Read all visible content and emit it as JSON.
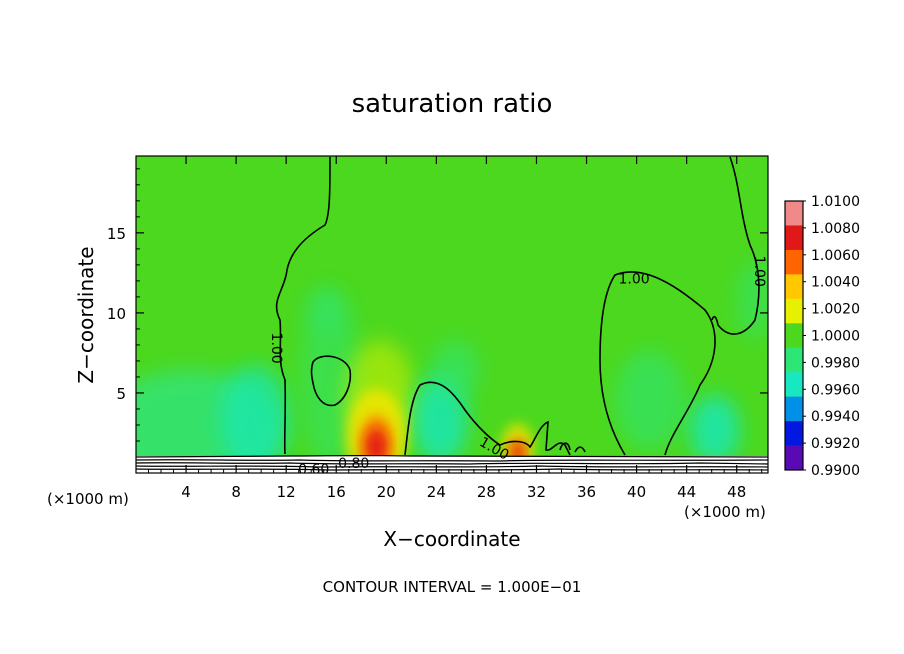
{
  "chart_data": {
    "type": "heatmap",
    "title": "saturation ratio",
    "xlabel": "X−coordinate",
    "ylabel": "Z−coordinate",
    "x_unit_left": "(×1000 m)",
    "x_unit_right": "(×1000 m)",
    "xlim": [
      0,
      50.5
    ],
    "ylim": [
      0,
      19.8
    ],
    "x_ticks": [
      4,
      8,
      12,
      16,
      20,
      24,
      28,
      32,
      36,
      40,
      44,
      48
    ],
    "y_ticks": [
      5,
      10,
      15
    ],
    "footer": "CONTOUR INTERVAL = 1.000E−01",
    "colorbar": {
      "labels": [
        "1.0100",
        "1.0080",
        "1.0060",
        "1.0040",
        "1.0020",
        "1.0000",
        "0.9980",
        "0.9960",
        "0.9940",
        "0.9920",
        "0.9900"
      ],
      "colors": [
        "#f08a8a",
        "#e01818",
        "#ff6400",
        "#ffc800",
        "#e6f000",
        "#4cd81e",
        "#2ee676",
        "#18e8c0",
        "#0090e8",
        "#0018e0",
        "#5a0ab4"
      ]
    },
    "contour_labels": [
      {
        "text": "1.00",
        "x": 11.2,
        "z": 7.8,
        "rotate": 90
      },
      {
        "text": "1.00",
        "x": 39.8,
        "z": 12.1,
        "rotate": 0
      },
      {
        "text": "1.00",
        "x": 49.8,
        "z": 12.6,
        "rotate": 90
      },
      {
        "text": "1.00",
        "x": 28.6,
        "z": 1.5,
        "rotate": 30
      },
      {
        "text": "0.60",
        "x": 14.2,
        "z": 0.2,
        "rotate": 0
      },
      {
        "text": "0.80",
        "x": 17.4,
        "z": 0.55,
        "rotate": 0
      }
    ],
    "hotspots": [
      {
        "x": 19.2,
        "z": 1.8,
        "color": "#e01818",
        "rx": 1.1,
        "rz": 1.0
      },
      {
        "x": 30.5,
        "z": 1.4,
        "color": "#e01818",
        "rx": 0.6,
        "rz": 0.45
      }
    ]
  }
}
